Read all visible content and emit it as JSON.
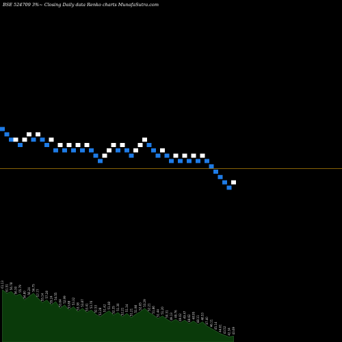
{
  "header": {
    "title": "BSE 524709 3%~  Closing Daily data  Renko  charts MunafaSutra.com"
  },
  "colors": {
    "background": "#000000",
    "down_brick": "#1e7be6",
    "up_brick": "#ffffff",
    "reference_line": "#b8860b",
    "volume_fill": "#0a3a0a",
    "volume_line": "#2f6b2f",
    "volume_label": "#d8d8d8"
  },
  "chart_data": {
    "type": "renko",
    "title": "BSE 524709 3%~  Closing Daily data  Renko  charts MunafaSutra.com",
    "brick_size_percent": 3,
    "bricks": [
      {
        "level": 8,
        "dir": "down"
      },
      {
        "level": 7,
        "dir": "down"
      },
      {
        "level": 6,
        "dir": "down"
      },
      {
        "level": 6,
        "dir": "up"
      },
      {
        "level": 5,
        "dir": "down"
      },
      {
        "level": 6,
        "dir": "up"
      },
      {
        "level": 7,
        "dir": "up"
      },
      {
        "level": 6,
        "dir": "down"
      },
      {
        "level": 7,
        "dir": "up"
      },
      {
        "level": 6,
        "dir": "down"
      },
      {
        "level": 5,
        "dir": "down"
      },
      {
        "level": 6,
        "dir": "up"
      },
      {
        "level": 4,
        "dir": "down"
      },
      {
        "level": 5,
        "dir": "up"
      },
      {
        "level": 4,
        "dir": "down"
      },
      {
        "level": 5,
        "dir": "up"
      },
      {
        "level": 4,
        "dir": "down"
      },
      {
        "level": 5,
        "dir": "up"
      },
      {
        "level": 4,
        "dir": "down"
      },
      {
        "level": 5,
        "dir": "up"
      },
      {
        "level": 4,
        "dir": "down"
      },
      {
        "level": 3,
        "dir": "down"
      },
      {
        "level": 2,
        "dir": "down"
      },
      {
        "level": 3,
        "dir": "up"
      },
      {
        "level": 4,
        "dir": "up"
      },
      {
        "level": 5,
        "dir": "up"
      },
      {
        "level": 4,
        "dir": "down"
      },
      {
        "level": 5,
        "dir": "up"
      },
      {
        "level": 4,
        "dir": "down"
      },
      {
        "level": 3,
        "dir": "down"
      },
      {
        "level": 4,
        "dir": "up"
      },
      {
        "level": 5,
        "dir": "up"
      },
      {
        "level": 6,
        "dir": "up"
      },
      {
        "level": 5,
        "dir": "down"
      },
      {
        "level": 4,
        "dir": "down"
      },
      {
        "level": 3,
        "dir": "down"
      },
      {
        "level": 4,
        "dir": "up"
      },
      {
        "level": 3,
        "dir": "down"
      },
      {
        "level": 2,
        "dir": "down"
      },
      {
        "level": 3,
        "dir": "up"
      },
      {
        "level": 2,
        "dir": "down"
      },
      {
        "level": 3,
        "dir": "up"
      },
      {
        "level": 2,
        "dir": "down"
      },
      {
        "level": 3,
        "dir": "up"
      },
      {
        "level": 2,
        "dir": "down"
      },
      {
        "level": 3,
        "dir": "up"
      },
      {
        "level": 2,
        "dir": "down"
      },
      {
        "level": 1,
        "dir": "down"
      },
      {
        "level": 0,
        "dir": "down"
      },
      {
        "level": -1,
        "dir": "down"
      },
      {
        "level": -2,
        "dir": "down"
      },
      {
        "level": -3,
        "dir": "down"
      },
      {
        "level": -2,
        "dir": "up"
      }
    ],
    "volume": [
      {
        "value": 62,
        "label": "61.13"
      },
      {
        "value": 58,
        "label": "61.51"
      },
      {
        "value": 60,
        "label": "56.78"
      },
      {
        "value": 55,
        "label": "56.30"
      },
      {
        "value": 57,
        "label": "55.79"
      },
      {
        "value": 50,
        "label": "54.80"
      },
      {
        "value": 54,
        "label": "56.24"
      },
      {
        "value": 58,
        "label": "56.75"
      },
      {
        "value": 52,
        "label": "57.77"
      },
      {
        "value": 47,
        "label": "55.14"
      },
      {
        "value": 50,
        "label": "57.28"
      },
      {
        "value": 44,
        "label": "55.24"
      },
      {
        "value": 48,
        "label": "54.55"
      },
      {
        "value": 40,
        "label": "53.64"
      },
      {
        "value": 44,
        "label": "52.99"
      },
      {
        "value": 38,
        "label": "53.88"
      },
      {
        "value": 42,
        "label": "53.32"
      },
      {
        "value": 36,
        "label": "53.38"
      },
      {
        "value": 40,
        "label": "53.87"
      },
      {
        "value": 35,
        "label": "53.41"
      },
      {
        "value": 38,
        "label": "53.76"
      },
      {
        "value": 33,
        "label": "52.53"
      },
      {
        "value": 30,
        "label": "52.28"
      },
      {
        "value": 34,
        "label": "51.42"
      },
      {
        "value": 37,
        "label": "51.08"
      },
      {
        "value": 32,
        "label": "52.35"
      },
      {
        "value": 35,
        "label": "51.30"
      },
      {
        "value": 30,
        "label": "52.21"
      },
      {
        "value": 34,
        "label": "51.34"
      },
      {
        "value": 29,
        "label": "51.21"
      },
      {
        "value": 33,
        "label": "51.98"
      },
      {
        "value": 36,
        "label": "52.65"
      },
      {
        "value": 40,
        "label": "53.29"
      },
      {
        "value": 35,
        "label": "52.21"
      },
      {
        "value": 32,
        "label": "51.86"
      },
      {
        "value": 28,
        "label": "51.44"
      },
      {
        "value": 31,
        "label": "51.20"
      },
      {
        "value": 27,
        "label": "50.31"
      },
      {
        "value": 24,
        "label": "49.13"
      },
      {
        "value": 27,
        "label": "49.76"
      },
      {
        "value": 23,
        "label": "49.02"
      },
      {
        "value": 26,
        "label": "49.47"
      },
      {
        "value": 22,
        "label": "48.62"
      },
      {
        "value": 25,
        "label": "48.95"
      },
      {
        "value": 21,
        "label": "48.11"
      },
      {
        "value": 24,
        "label": "48.53"
      },
      {
        "value": 19,
        "label": "47.40"
      },
      {
        "value": 16,
        "label": "46.11"
      },
      {
        "value": 13,
        "label": "45.14"
      },
      {
        "value": 10,
        "label": "44.61"
      },
      {
        "value": 8,
        "label": "43.52"
      },
      {
        "value": 6,
        "label": "42.34"
      },
      {
        "value": 7,
        "label": "43.69"
      }
    ]
  }
}
